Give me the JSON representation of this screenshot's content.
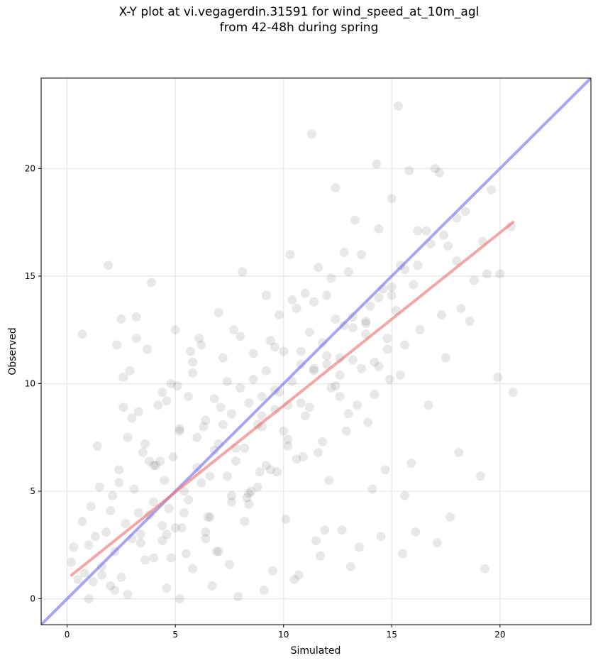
{
  "title_line1": "X-Y plot at vi.vegagerdin.31591 for wind_speed_at_10m_agl",
  "title_line2": "from 42-48h during spring",
  "chart_data": {
    "type": "scatter",
    "xlabel": "Simulated",
    "ylabel": "Observed",
    "xlim": [
      -1.2,
      24.2
    ],
    "ylim": [
      -1.2,
      24.2
    ],
    "xticks": [
      0,
      5,
      10,
      15,
      20
    ],
    "yticks": [
      0,
      5,
      10,
      15,
      20
    ],
    "grid": true,
    "colors": {
      "points": "#000000",
      "identity_line": "#7777ee",
      "regression_line": "#ee7777"
    },
    "identity_line": {
      "x": [
        -1.2,
        24.2
      ],
      "y": [
        -1.2,
        24.2
      ]
    },
    "regression_line": {
      "x": [
        0.2,
        20.6
      ],
      "y": [
        1.1,
        17.5
      ]
    },
    "points": {
      "x": [
        0.2,
        0.3,
        0.5,
        0.7,
        0.8,
        1.0,
        1.1,
        1.2,
        1.3,
        1.5,
        1.6,
        1.8,
        2.0,
        2.1,
        2.2,
        2.4,
        2.5,
        2.7,
        2.8,
        3.0,
        3.1,
        3.3,
        3.5,
        3.6,
        3.8,
        4.0,
        4.2,
        4.4,
        4.5,
        4.7,
        4.9,
        5.0,
        5.2,
        5.4,
        5.6,
        5.8,
        6.0,
        6.2,
        6.4,
        6.6,
        6.8,
        7.0,
        7.2,
        7.4,
        7.6,
        7.8,
        8.0,
        8.2,
        8.4,
        8.6,
        8.8,
        9.0,
        9.2,
        9.4,
        9.6,
        9.8,
        10.0,
        10.2,
        10.4,
        10.6,
        10.8,
        11.0,
        11.2,
        11.4,
        11.6,
        11.8,
        12.0,
        12.2,
        12.4,
        12.6,
        12.8,
        13.0,
        13.2,
        13.4,
        13.6,
        13.8,
        14.0,
        14.2,
        14.4,
        14.6,
        14.8,
        15.0,
        15.2,
        15.4,
        15.6,
        15.8,
        16.0,
        16.3,
        16.6,
        17.0,
        17.3,
        17.6,
        18.0,
        18.4,
        18.8,
        19.2,
        19.6,
        20.0,
        20.5,
        0.7,
        1.9,
        2.5,
        2.9,
        3.3,
        3.7,
        4.1,
        4.6,
        5.1,
        5.5,
        6.1,
        6.5,
        7.0,
        7.6,
        8.1,
        8.5,
        9.2,
        9.7,
        10.3,
        10.9,
        11.3,
        11.9,
        12.4,
        12.9,
        13.3,
        13.9,
        14.3,
        14.9,
        15.3,
        15.6,
        16.2,
        16.7,
        17.2,
        17.5,
        18.2,
        18.6,
        19.4,
        19.9,
        20.6,
        1.4,
        2.3,
        3.2,
        3.9,
        4.8,
        5.3,
        6.3,
        6.9,
        7.5,
        8.3,
        8.9,
        9.5,
        10.1,
        10.7,
        11.5,
        12.1,
        12.7,
        13.5,
        14.1,
        14.7,
        15.5,
        16.1,
        17.1,
        18.1,
        19.1,
        3.0,
        4.3,
        5.7,
        6.7,
        7.9,
        9.1,
        10.5,
        11.7,
        13.1,
        14.5,
        15.9,
        17.7,
        19.3,
        2.6,
        3.4,
        4.0,
        4.6,
        5.2,
        5.8,
        6.4,
        7.1,
        7.7,
        8.4,
        9.0,
        9.6,
        10.2,
        10.8,
        11.4,
        12.0,
        12.6,
        13.2,
        13.8,
        14.4,
        15.0,
        1.0,
        1.6,
        2.2,
        2.8,
        3.4,
        4.0,
        4.6,
        5.2,
        5.8,
        6.4,
        7.0,
        7.6,
        8.2,
        8.8,
        9.4,
        10.0,
        10.6,
        11.2,
        11.8,
        12.4,
        13.0,
        13.6,
        14.2,
        14.8,
        15.4,
        2.0,
        2.6,
        3.2,
        3.8,
        4.4,
        5.0,
        5.6,
        6.2,
        6.8,
        7.4,
        8.0,
        8.6,
        9.2,
        9.8,
        10.4,
        11.0,
        11.6,
        12.2,
        12.8,
        2.4,
        3.6,
        4.8,
        6.0,
        7.2,
        8.4,
        9.6,
        10.8,
        12.0,
        13.2,
        14.4,
        15.6,
        16.8,
        18.0,
        4.4,
        5.4,
        6.6,
        7.8,
        9.0,
        10.2,
        11.4,
        12.6,
        13.8,
        15.0,
        16.2,
        17.4
      ],
      "y": [
        1.7,
        2.4,
        0.9,
        3.6,
        1.2,
        2.5,
        4.3,
        0.8,
        2.9,
        5.2,
        1.5,
        3.1,
        0.6,
        4.8,
        2.2,
        6.0,
        1.0,
        3.5,
        7.5,
        2.8,
        5.1,
        4.0,
        6.8,
        1.8,
        3.9,
        4.5,
        9.0,
        2.7,
        5.5,
        4.2,
        6.6,
        3.3,
        7.9,
        5.0,
        4.6,
        10.5,
        6.1,
        5.4,
        8.3,
        3.8,
        6.9,
        7.2,
        11.2,
        5.7,
        8.6,
        6.4,
        9.8,
        7.0,
        4.9,
        10.2,
        8.1,
        9.4,
        6.2,
        12.0,
        8.8,
        9.6,
        11.5,
        7.4,
        10.1,
        13.5,
        9.1,
        8.5,
        12.4,
        10.7,
        6.8,
        11.9,
        14.1,
        9.8,
        13.0,
        10.4,
        12.7,
        15.2,
        11.1,
        9.0,
        16.0,
        12.3,
        13.6,
        11.0,
        17.2,
        14.4,
        12.1,
        18.6,
        13.4,
        15.5,
        11.8,
        19.9,
        14.6,
        12.5,
        17.1,
        20.0,
        13.2,
        16.4,
        15.7,
        18.0,
        14.8,
        16.6,
        19.0,
        15.1,
        17.3,
        12.3,
        15.5,
        13.0,
        10.6,
        8.7,
        11.6,
        6.2,
        3.0,
        9.9,
        2.1,
        12.1,
        3.8,
        13.3,
        4.5,
        15.2,
        5.0,
        14.1,
        5.9,
        16.0,
        6.6,
        21.6,
        3.2,
        19.1,
        7.8,
        17.6,
        8.2,
        20.2,
        10.2,
        22.9,
        4.8,
        17.1,
        9.0,
        19.8,
        11.2,
        13.5,
        12.9,
        15.1,
        10.3,
        9.6,
        7.1,
        11.8,
        13.1,
        14.7,
        1.9,
        3.3,
        8.0,
        2.2,
        1.6,
        4.7,
        5.9,
        1.3,
        3.7,
        1.1,
        2.7,
        5.5,
        3.2,
        2.4,
        5.1,
        6.0,
        2.1,
        3.1,
        2.6,
        6.8,
        5.7,
        8.4,
        6.4,
        11.5,
        0.6,
        0.1,
        0.4,
        0.9,
        2.0,
        1.5,
        2.9,
        6.3,
        3.8,
        1.4,
        10.3,
        3.0,
        6.2,
        9.2,
        7.8,
        11.0,
        3.1,
        8.9,
        12.5,
        4.4,
        8.0,
        11.7,
        7.1,
        10.9,
        13.8,
        11.3,
        9.4,
        13.1,
        12.9,
        10.8,
        14.5,
        0.0,
        1.1,
        0.4,
        0.2,
        2.6,
        1.9,
        0.5,
        0.0,
        1.4,
        2.8,
        2.2,
        4.8,
        3.6,
        5.2,
        6.0,
        7.8,
        6.5,
        8.9,
        7.3,
        9.9,
        8.6,
        10.7,
        9.5,
        11.6,
        10.4,
        4.1,
        8.9,
        12.1,
        6.4,
        9.6,
        12.5,
        9.4,
        11.8,
        9.3,
        10.1,
        12.2,
        11.4,
        10.6,
        13.2,
        13.9,
        14.2,
        15.4,
        14.9,
        16.1,
        5.4,
        7.2,
        10.0,
        7.5,
        8.1,
        9.1,
        9.7,
        11.5,
        10.9,
        12.6,
        14.0,
        15.3,
        16.5,
        17.7,
        3.4,
        4.0,
        5.7,
        7.0,
        8.5,
        9.0,
        10.6,
        11.2,
        12.8,
        14.1,
        15.5,
        16.9
      ]
    }
  }
}
